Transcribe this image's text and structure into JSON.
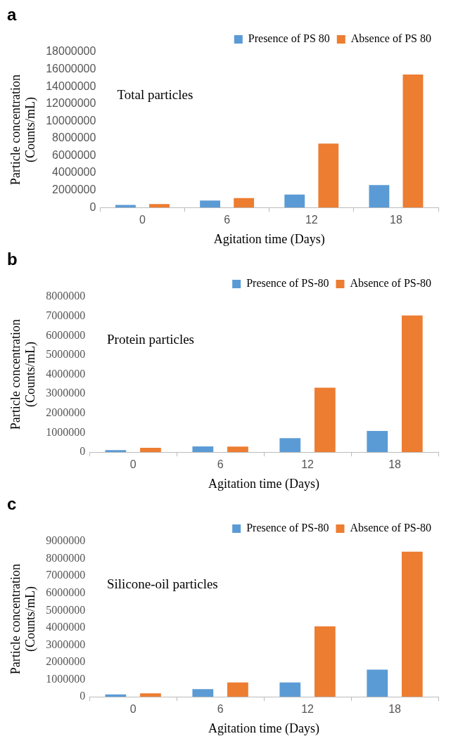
{
  "chart_data": [
    {
      "type": "bar",
      "title": "Total particles",
      "annotations": [
        "a"
      ],
      "xlabel": "Agitation time (Days)",
      "ylabel": "Particle concentration\n(Counts/mL)",
      "categories": [
        "0",
        "6",
        "12",
        "18"
      ],
      "series": [
        {
          "name": "Presence of PS 80",
          "color": "#5b9bd5",
          "values": [
            300000,
            800000,
            1500000,
            2600000
          ]
        },
        {
          "name": "Absence of PS 80",
          "color": "#ed7d31",
          "values": [
            400000,
            1100000,
            7400000,
            15400000
          ]
        }
      ],
      "ylim": [
        0,
        18000000
      ],
      "yticks": [
        0,
        2000000,
        4000000,
        6000000,
        8000000,
        10000000,
        12000000,
        14000000,
        16000000,
        18000000
      ],
      "grid": false,
      "legend": "top right"
    },
    {
      "type": "bar",
      "title": "Protein particles",
      "annotations": [
        "b"
      ],
      "xlabel": "Agitation time (Days)",
      "ylabel": "Particle concentration\n(Counts/mL)",
      "categories": [
        "0",
        "6",
        "12",
        "18"
      ],
      "series": [
        {
          "name": "Presence of PS-80",
          "color": "#5b9bd5",
          "values": [
            110000,
            300000,
            720000,
            1090000
          ]
        },
        {
          "name": "Absence of PS-80",
          "color": "#ed7d31",
          "values": [
            220000,
            290000,
            3320000,
            7030000
          ]
        }
      ],
      "ylim": [
        0,
        8000000
      ],
      "yticks": [
        0,
        1000000,
        2000000,
        3000000,
        4000000,
        5000000,
        6000000,
        7000000,
        8000000
      ],
      "grid": false,
      "legend": "top right"
    },
    {
      "type": "bar",
      "title": "Silicone-oil particles",
      "annotations": [
        "c"
      ],
      "xlabel": "Agitation time (Days)",
      "ylabel": "Particle concentration\n(Counts/mL)",
      "categories": [
        "0",
        "6",
        "12",
        "18"
      ],
      "series": [
        {
          "name": "Presence of PS-80",
          "color": "#5b9bd5",
          "values": [
            140000,
            450000,
            830000,
            1570000
          ]
        },
        {
          "name": "Absence of PS-80",
          "color": "#ed7d31",
          "values": [
            200000,
            830000,
            4080000,
            8400000
          ]
        }
      ],
      "ylim": [
        0,
        9000000
      ],
      "yticks": [
        0,
        1000000,
        2000000,
        3000000,
        4000000,
        5000000,
        6000000,
        7000000,
        8000000,
        9000000
      ],
      "grid": false,
      "legend": "top right"
    }
  ]
}
